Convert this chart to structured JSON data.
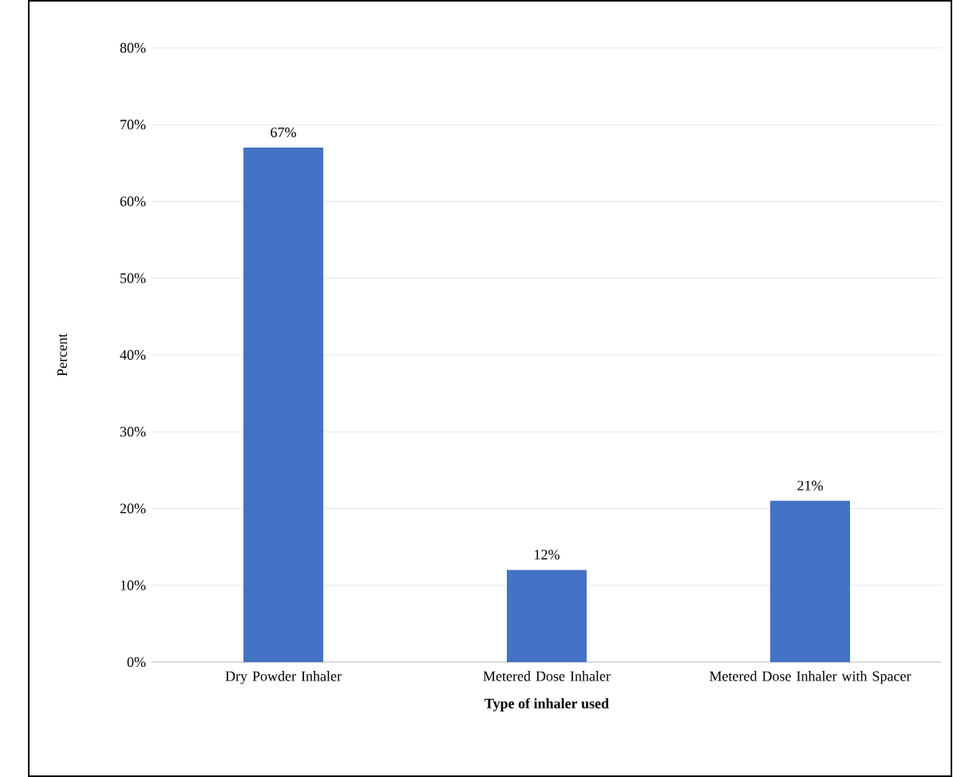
{
  "chart_data": {
    "type": "bar",
    "xlabel": "Type of inhaler used",
    "ylabel": "Percent",
    "categories": [
      "Dry Powder Inhaler",
      "Metered Dose Inhaler",
      "Metered Dose Inhaler with Spacer"
    ],
    "values": [
      67,
      12,
      21
    ],
    "value_labels": [
      "67%",
      "12%",
      "21%"
    ],
    "color": "#4472c4",
    "ylim": [
      0,
      80
    ],
    "yticks": [
      {
        "value": 0,
        "label": "0%"
      },
      {
        "value": 10,
        "label": "10%"
      },
      {
        "value": 20,
        "label": "20%"
      },
      {
        "value": 30,
        "label": "30%"
      },
      {
        "value": 40,
        "label": "40%"
      },
      {
        "value": 50,
        "label": "50%"
      },
      {
        "value": 60,
        "label": "60%"
      },
      {
        "value": 70,
        "label": "70%"
      },
      {
        "value": 80,
        "label": "80%"
      }
    ],
    "grid": "y"
  }
}
